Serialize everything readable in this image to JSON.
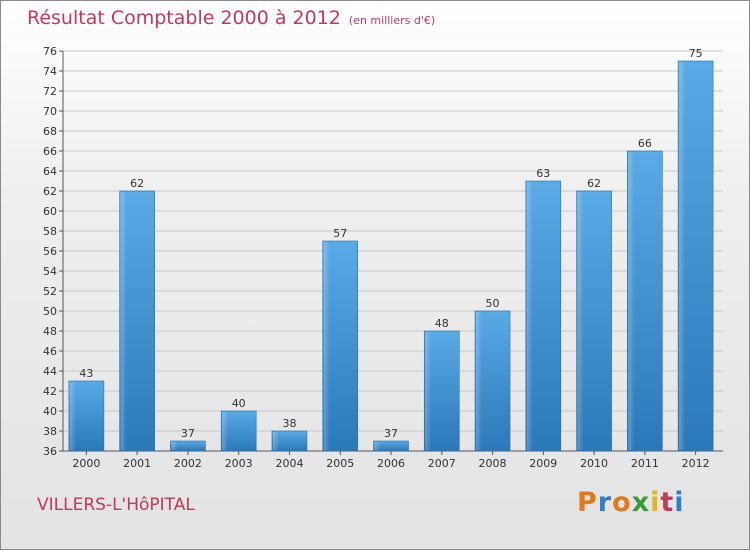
{
  "title": {
    "main": "Résultat Comptable 2000 à 2012",
    "unit": "(en milliers d'€)"
  },
  "location": "VILLERS-L'HôPITAL",
  "logo": {
    "text": "Proxiti",
    "letters": [
      "P",
      "r",
      "o",
      "x",
      "i",
      "t",
      "i"
    ],
    "colors": [
      "#e07a1c",
      "#2f7fc4",
      "#e07a1c",
      "#3a9a3a",
      "#e2b61a",
      "#c4385a",
      "#2f7fc4"
    ]
  },
  "chart_data": {
    "type": "bar",
    "title": "Résultat Comptable 2000 à 2012",
    "ylabel": "(en milliers d'€)",
    "xlabel": "",
    "categories": [
      "2000",
      "2001",
      "2002",
      "2003",
      "2004",
      "2005",
      "2006",
      "2007",
      "2008",
      "2009",
      "2010",
      "2011",
      "2012"
    ],
    "values": [
      43,
      62,
      37,
      40,
      38,
      57,
      37,
      48,
      50,
      63,
      62,
      66,
      75
    ],
    "ylim": [
      36,
      76
    ],
    "yticks": [
      36,
      38,
      40,
      42,
      44,
      46,
      48,
      50,
      52,
      54,
      56,
      58,
      60,
      62,
      64,
      66,
      68,
      70,
      72,
      74,
      76
    ],
    "grid": true,
    "bar_color": "#3d8fd6"
  }
}
